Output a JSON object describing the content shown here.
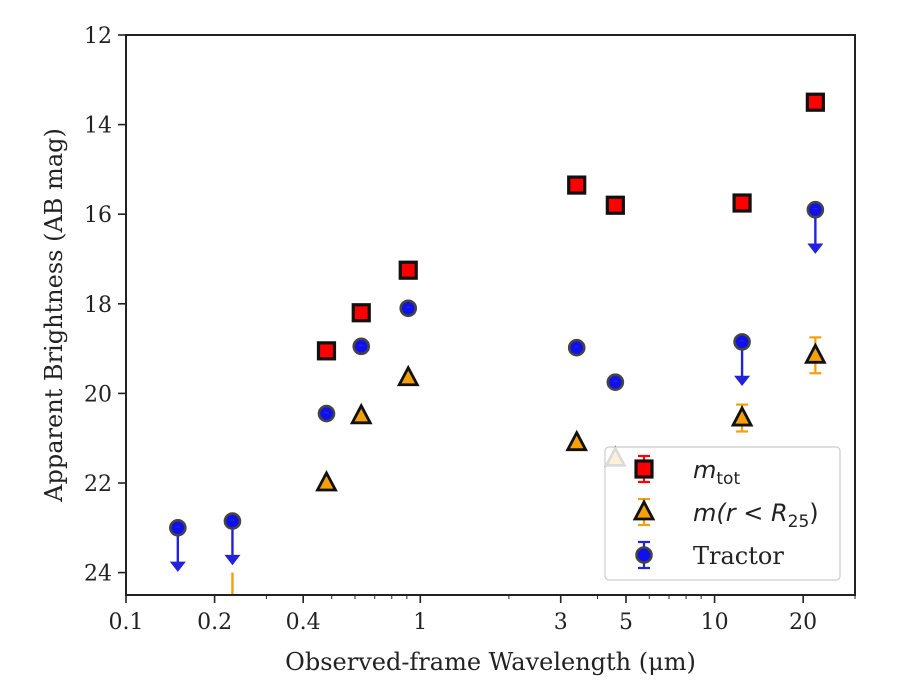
{
  "chart_data": {
    "type": "scatter",
    "xlabel": "Observed-frame Wavelength (μm)",
    "ylabel": "Apparent Brightness (AB mag)",
    "xscale": "log",
    "xlim": [
      0.1,
      30
    ],
    "ylim": [
      24.5,
      12
    ],
    "y_inverted": true,
    "x_ticks": [
      0.1,
      0.2,
      0.4,
      1,
      3,
      5,
      10,
      20
    ],
    "x_tick_labels": [
      "0.1",
      "0.2",
      "0.4",
      "1",
      "3",
      "5",
      "10",
      "20"
    ],
    "y_ticks": [
      12,
      14,
      16,
      18,
      20,
      22,
      24
    ],
    "y_tick_labels": [
      "12",
      "14",
      "16",
      "18",
      "20",
      "22",
      "24"
    ],
    "legend_placement": "lower-right",
    "series": [
      {
        "name": "m_tot",
        "legend_main": "m",
        "legend_sub": "tot",
        "marker": "square",
        "color": "#ff0000",
        "edge": "#111111",
        "errcolor": "#ff0000",
        "points": [
          {
            "x": 0.48,
            "y": 19.05
          },
          {
            "x": 0.63,
            "y": 18.2
          },
          {
            "x": 0.91,
            "y": 17.25
          },
          {
            "x": 3.4,
            "y": 15.35
          },
          {
            "x": 4.6,
            "y": 15.8
          },
          {
            "x": 12.4,
            "y": 15.75
          },
          {
            "x": 22.0,
            "y": 13.5
          }
        ]
      },
      {
        "name": "m(r<R25)",
        "legend_main": "m(r < R",
        "legend_sub": "25",
        "legend_tail": ")",
        "marker": "triangle",
        "color": "#f5a00a",
        "edge": "#111111",
        "errcolor": "#f5a00a",
        "points": [
          {
            "x": 0.48,
            "y": 22.0
          },
          {
            "x": 0.63,
            "y": 20.5
          },
          {
            "x": 0.91,
            "y": 19.65
          },
          {
            "x": 3.4,
            "y": 21.1
          },
          {
            "x": 4.6,
            "y": 21.45
          },
          {
            "x": 12.4,
            "y": 20.55,
            "err": 0.3
          },
          {
            "x": 22.0,
            "y": 19.15,
            "err": 0.4
          }
        ],
        "limits": [
          {
            "x": 0.23,
            "from": 24.0,
            "to": 25.0
          }
        ]
      },
      {
        "name": "Tractor",
        "legend_main": "Tractor",
        "marker": "circle",
        "color": "#1010ee",
        "edge": "#444444",
        "errcolor": "#2222dd",
        "points": [
          {
            "x": 0.15,
            "y": 23.0,
            "upper_limit": true
          },
          {
            "x": 0.23,
            "y": 22.85,
            "upper_limit": true
          },
          {
            "x": 0.48,
            "y": 20.45
          },
          {
            "x": 0.63,
            "y": 18.95
          },
          {
            "x": 0.91,
            "y": 18.1
          },
          {
            "x": 3.4,
            "y": 18.98
          },
          {
            "x": 4.6,
            "y": 19.75
          },
          {
            "x": 12.4,
            "y": 18.85,
            "upper_limit": true
          },
          {
            "x": 22.0,
            "y": 15.9,
            "upper_limit": true
          }
        ]
      }
    ]
  }
}
